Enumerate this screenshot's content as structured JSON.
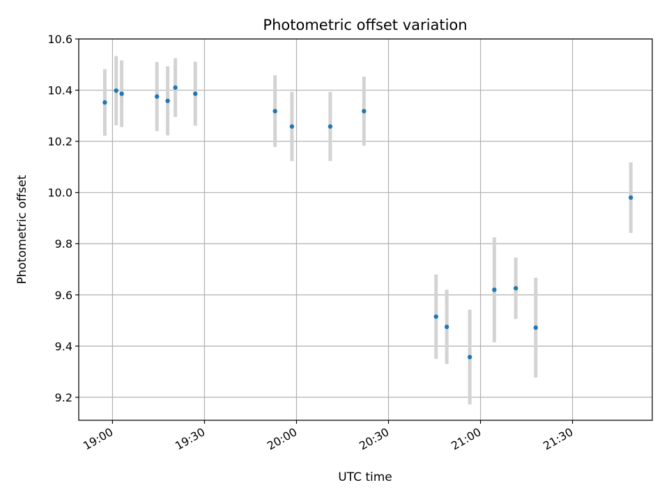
{
  "chart_data": {
    "type": "scatter",
    "title": "Photometric offset variation",
    "xlabel": "UTC time",
    "ylabel": "Photometric offset",
    "x_unit": "minutes since 19:00 UTC",
    "xlim": [
      -11,
      176
    ],
    "ylim": [
      9.11,
      10.6
    ],
    "grid": true,
    "x_ticks": [
      {
        "value": 0,
        "label": "19:00"
      },
      {
        "value": 30,
        "label": "19:30"
      },
      {
        "value": 60,
        "label": "20:00"
      },
      {
        "value": 90,
        "label": "20:30"
      },
      {
        "value": 120,
        "label": "21:00"
      },
      {
        "value": 150,
        "label": "21:30"
      }
    ],
    "y_ticks": [
      {
        "value": 9.2,
        "label": "9.2"
      },
      {
        "value": 9.4,
        "label": "9.4"
      },
      {
        "value": 9.6,
        "label": "9.6"
      },
      {
        "value": 9.8,
        "label": "9.8"
      },
      {
        "value": 10.0,
        "label": "10.0"
      },
      {
        "value": 10.2,
        "label": "10.2"
      },
      {
        "value": 10.4,
        "label": "10.4"
      },
      {
        "value": 10.6,
        "label": "10.6"
      }
    ],
    "series": [
      {
        "name": "Photometric offset",
        "point_color": "#1f77b4",
        "errorbar_color": "#d3d3d3",
        "points": [
          {
            "x": -2.5,
            "y": 10.352,
            "err_low": 0.13,
            "err_high": 0.13
          },
          {
            "x": 1.2,
            "y": 10.398,
            "err_low": 0.135,
            "err_high": 0.135
          },
          {
            "x": 3.0,
            "y": 10.386,
            "err_low": 0.13,
            "err_high": 0.13
          },
          {
            "x": 14.5,
            "y": 10.375,
            "err_low": 0.135,
            "err_high": 0.135
          },
          {
            "x": 18.0,
            "y": 10.358,
            "err_low": 0.135,
            "err_high": 0.135
          },
          {
            "x": 20.5,
            "y": 10.41,
            "err_low": 0.115,
            "err_high": 0.115
          },
          {
            "x": 27.0,
            "y": 10.386,
            "err_low": 0.125,
            "err_high": 0.125
          },
          {
            "x": 53.0,
            "y": 10.318,
            "err_low": 0.14,
            "err_high": 0.14
          },
          {
            "x": 58.5,
            "y": 10.258,
            "err_low": 0.135,
            "err_high": 0.135
          },
          {
            "x": 71.0,
            "y": 10.258,
            "err_low": 0.135,
            "err_high": 0.135
          },
          {
            "x": 82.0,
            "y": 10.318,
            "err_low": 0.135,
            "err_high": 0.135
          },
          {
            "x": 105.5,
            "y": 9.515,
            "err_low": 0.165,
            "err_high": 0.165
          },
          {
            "x": 109.0,
            "y": 9.475,
            "err_low": 0.145,
            "err_high": 0.145
          },
          {
            "x": 116.5,
            "y": 9.357,
            "err_low": 0.185,
            "err_high": 0.185
          },
          {
            "x": 124.5,
            "y": 9.62,
            "err_low": 0.205,
            "err_high": 0.205
          },
          {
            "x": 131.5,
            "y": 9.626,
            "err_low": 0.12,
            "err_high": 0.12
          },
          {
            "x": 138.0,
            "y": 9.472,
            "err_low": 0.195,
            "err_high": 0.195
          },
          {
            "x": 169.0,
            "y": 9.98,
            "err_low": 0.138,
            "err_high": 0.138
          }
        ]
      }
    ]
  }
}
